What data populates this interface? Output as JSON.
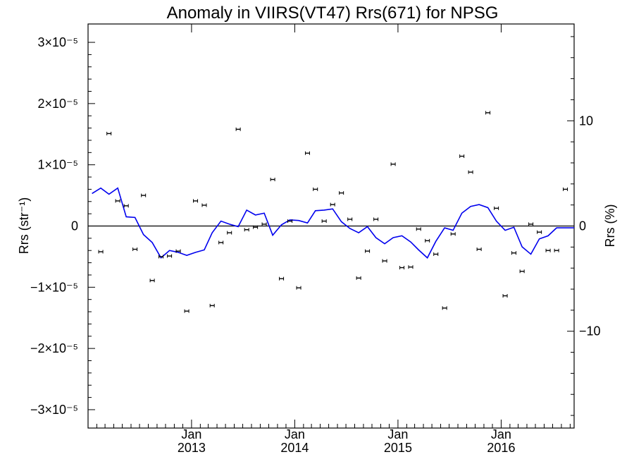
{
  "chart_data": {
    "type": "scatter",
    "title": "Anomaly in VIIRS(VT47) Rrs(671) for NPSG",
    "ylabel_left": "Rrs (str⁻¹)",
    "ylabel_right": "Rrs (%)",
    "ylim_left": [
      -3.3e-05,
      3.3e-05
    ],
    "ylim_right": [
      -19.2,
      19.2
    ],
    "yticks_left": [
      {
        "value": 3e-05,
        "label": "3×10⁻⁵"
      },
      {
        "value": 2e-05,
        "label": "2×10⁻⁵"
      },
      {
        "value": 1e-05,
        "label": "1×10⁻⁵"
      },
      {
        "value": 0,
        "label": "0"
      },
      {
        "value": -1e-05,
        "label": "−1×10⁻⁵"
      },
      {
        "value": -2e-05,
        "label": "−2×10⁻⁵"
      },
      {
        "value": -3e-05,
        "label": "−3×10⁻⁵"
      }
    ],
    "yticks_right": [
      {
        "value": 10,
        "label": "10"
      },
      {
        "value": 0,
        "label": "0"
      },
      {
        "value": -10,
        "label": "−10"
      }
    ],
    "xlim": [
      "2012-01-01",
      "2016-09-15"
    ],
    "xticks": [
      {
        "date": "2013-01-01",
        "month": "Jan",
        "year": "2013"
      },
      {
        "date": "2014-01-01",
        "month": "Jan",
        "year": "2014"
      },
      {
        "date": "2015-01-01",
        "month": "Jan",
        "year": "2015"
      },
      {
        "date": "2016-01-01",
        "month": "Jan",
        "year": "2016"
      }
    ],
    "zero_line": true,
    "series": [
      {
        "kind": "points_with_error_bars",
        "color": "#000000",
        "x": [
          "2012-02",
          "2012-03",
          "2012-04",
          "2012-05",
          "2012-06",
          "2012-07",
          "2012-08",
          "2012-09",
          "2012-10",
          "2012-11",
          "2012-12",
          "2013-01",
          "2013-02",
          "2013-03",
          "2013-04",
          "2013-05",
          "2013-06",
          "2013-07",
          "2013-08",
          "2013-09",
          "2013-10",
          "2013-11",
          "2013-12",
          "2014-01",
          "2014-02",
          "2014-03",
          "2014-04",
          "2014-05",
          "2014-06",
          "2014-07",
          "2014-08",
          "2014-09",
          "2014-10",
          "2014-11",
          "2014-12",
          "2015-01",
          "2015-02",
          "2015-03",
          "2015-04",
          "2015-05",
          "2015-06",
          "2015-07",
          "2015-08",
          "2015-09",
          "2015-10",
          "2015-11",
          "2015-12",
          "2016-01",
          "2016-02",
          "2016-03",
          "2016-04",
          "2016-05",
          "2016-06",
          "2016-07",
          "2016-08"
        ],
        "values": [
          -4.2e-06,
          1.51e-05,
          4.1e-06,
          3.3e-06,
          -3.8e-06,
          5e-06,
          -8.9e-06,
          -5e-06,
          -4.9e-06,
          -4.1e-06,
          -1.39e-05,
          4.1e-06,
          3.4e-06,
          -1.3e-05,
          -2.7e-06,
          -1.1e-06,
          1.58e-05,
          -6e-07,
          -2e-07,
          3e-07,
          7.6e-06,
          -8.6e-06,
          8e-07,
          -1.01e-05,
          1.19e-05,
          6e-06,
          8e-07,
          3.5e-06,
          5.4e-06,
          1.1e-06,
          -8.5e-06,
          -4.1e-06,
          1.1e-06,
          -5.7e-06,
          1.01e-05,
          -6.8e-06,
          -6.7e-06,
          -5e-07,
          -2.4e-06,
          -4.6e-06,
          -1.34e-05,
          -1.3e-06,
          1.14e-05,
          8.8e-06,
          -3.8e-06,
          1.85e-05,
          2.9e-06,
          -1.14e-05,
          -4.4e-06,
          -7.4e-06,
          3e-07,
          -1e-06,
          -4e-06,
          -4e-06,
          6e-06
        ]
      },
      {
        "kind": "line",
        "color": "#0000ee",
        "x": [
          "2012-01",
          "2012-02",
          "2012-03",
          "2012-04",
          "2012-05",
          "2012-06",
          "2012-07",
          "2012-08",
          "2012-09",
          "2012-10",
          "2012-11",
          "2012-12",
          "2013-01",
          "2013-02",
          "2013-03",
          "2013-04",
          "2013-05",
          "2013-06",
          "2013-07",
          "2013-08",
          "2013-09",
          "2013-10",
          "2013-11",
          "2013-12",
          "2014-01",
          "2014-02",
          "2014-03",
          "2014-04",
          "2014-05",
          "2014-06",
          "2014-07",
          "2014-08",
          "2014-09",
          "2014-10",
          "2014-11",
          "2014-12",
          "2015-01",
          "2015-02",
          "2015-03",
          "2015-04",
          "2015-05",
          "2015-06",
          "2015-07",
          "2015-08",
          "2015-09",
          "2015-10",
          "2015-11",
          "2015-12",
          "2016-01",
          "2016-02",
          "2016-03",
          "2016-04",
          "2016-05",
          "2016-06",
          "2016-07",
          "2016-08",
          "2016-09"
        ],
        "values": [
          5.3e-06,
          6.2e-06,
          5.2e-06,
          6.2e-06,
          1.5e-06,
          1.4e-06,
          -1.4e-06,
          -2.7e-06,
          -5.2e-06,
          -4e-06,
          -4.3e-06,
          -4.8e-06,
          -4.3e-06,
          -3.9e-06,
          -1.1e-06,
          8e-07,
          3e-07,
          -1e-07,
          2.6e-06,
          1.8e-06,
          2.1e-06,
          -1.5e-06,
          2e-07,
          1e-06,
          9e-07,
          5e-07,
          2.5e-06,
          2.6e-06,
          2.8e-06,
          7e-07,
          -4e-07,
          -1.1e-06,
          -1e-07,
          -1.9e-06,
          -2.9e-06,
          -1.9e-06,
          -1.6e-06,
          -2.6e-06,
          -3.9e-06,
          -5.2e-06,
          -2.5e-06,
          -3e-07,
          -7e-07,
          2.1e-06,
          3.2e-06,
          3.5e-06,
          3e-06,
          8e-07,
          -7e-07,
          -2e-07,
          -3.4e-06,
          -4.6e-06,
          -2.1e-06,
          -1.6e-06,
          -3e-07,
          -3e-07,
          -3e-07
        ]
      }
    ]
  }
}
